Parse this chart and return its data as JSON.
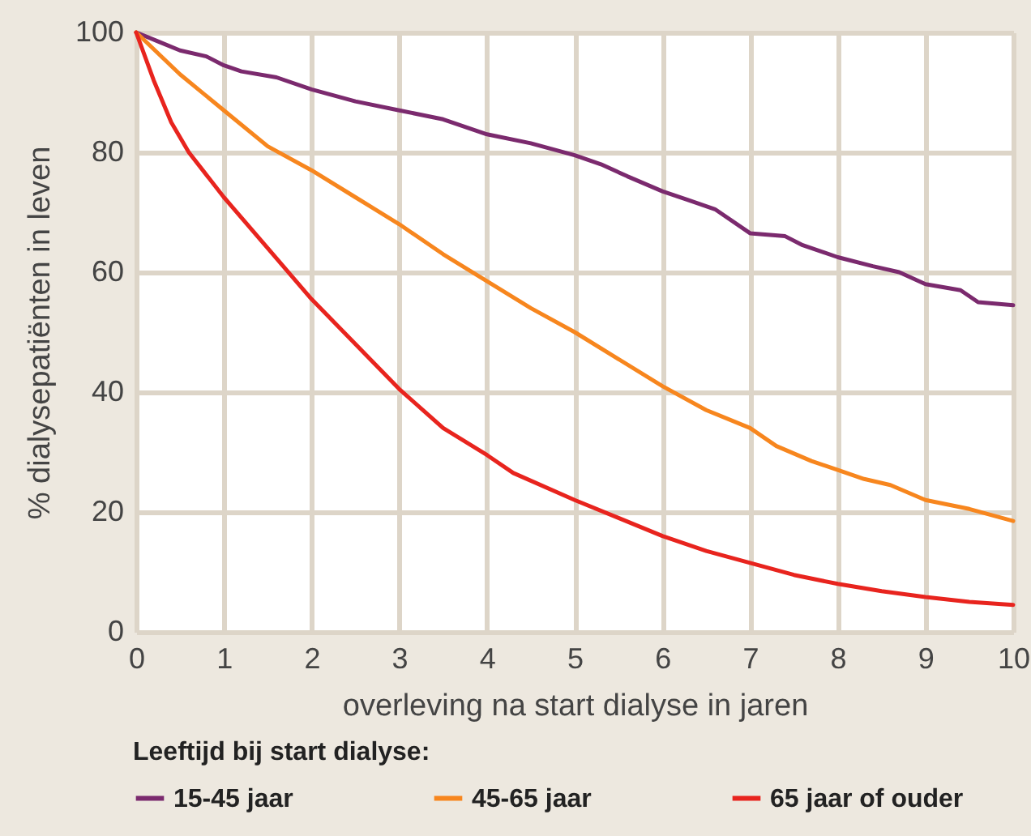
{
  "chart_data": {
    "type": "line",
    "xlabel": "overleving na start dialyse in jaren",
    "ylabel": "% dialysepatiënten in leven",
    "legend_title": "Leeftijd bij start dialyse:",
    "legend": "bottom",
    "grid": true,
    "marker": "none",
    "line_style": "solid",
    "xlim": [
      0,
      10
    ],
    "xticks": [
      0,
      1,
      2,
      3,
      4,
      5,
      6,
      7,
      8,
      9,
      10
    ],
    "ylim": [
      0,
      100
    ],
    "yticks": [
      0,
      20,
      40,
      60,
      80,
      100
    ],
    "series": [
      {
        "name": "15-45 jaar",
        "color": "#7b2a6e",
        "x": [
          0,
          0.25,
          0.5,
          0.8,
          1,
          1.2,
          1.6,
          2,
          2.5,
          3,
          3.5,
          4,
          4.5,
          5,
          5.3,
          5.6,
          6,
          6.3,
          6.6,
          7,
          7.4,
          7.6,
          8,
          8.4,
          8.7,
          9,
          9.4,
          9.6,
          10
        ],
        "values": [
          100,
          98.5,
          97,
          96,
          94.5,
          93.5,
          92.5,
          90.5,
          88.5,
          87,
          85.5,
          83,
          81.5,
          79.5,
          78,
          76,
          73.5,
          72,
          70.5,
          66.5,
          66,
          64.5,
          62.5,
          61,
          60,
          58,
          57,
          55,
          54.5
        ]
      },
      {
        "name": "45-65 jaar",
        "color": "#f7861e",
        "x": [
          0,
          0.5,
          1,
          1.5,
          2,
          2.5,
          3,
          3.5,
          4,
          4.5,
          5,
          5.5,
          6,
          6.5,
          7,
          7.3,
          7.7,
          8,
          8.3,
          8.6,
          9,
          9.5,
          10
        ],
        "values": [
          100,
          93,
          87,
          81,
          77,
          72.5,
          68,
          63,
          58.5,
          54,
          50,
          45.5,
          41,
          37,
          34,
          31,
          28.5,
          27,
          25.5,
          24.5,
          22,
          20.5,
          18.5
        ]
      },
      {
        "name": "65 jaar of ouder",
        "color": "#e8241e",
        "x": [
          0,
          0.2,
          0.4,
          0.6,
          1,
          1.5,
          2,
          2.5,
          3,
          3.5,
          4,
          4.3,
          5,
          5.5,
          6,
          6.5,
          7,
          7.5,
          8,
          8.5,
          9,
          9.5,
          10
        ],
        "values": [
          100,
          92,
          85,
          80,
          72.5,
          64,
          55.5,
          48,
          40.5,
          34,
          29.5,
          26.5,
          22,
          19,
          16,
          13.5,
          11.5,
          9.5,
          8,
          6.8,
          5.8,
          5,
          4.5
        ]
      }
    ]
  }
}
